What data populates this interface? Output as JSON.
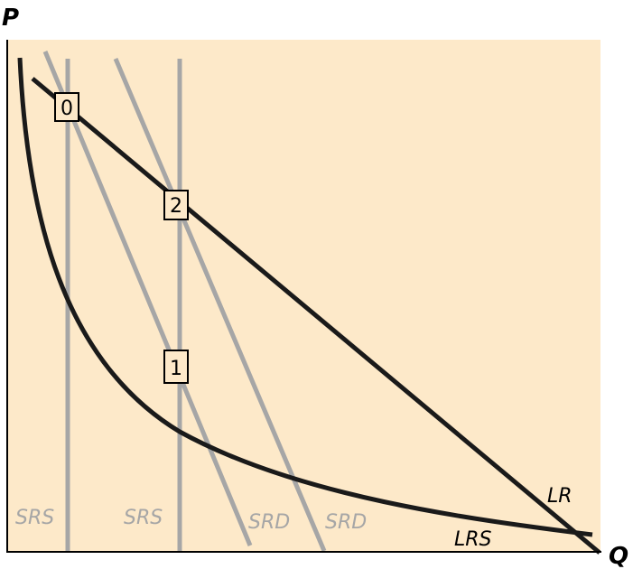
{
  "axes": {
    "y_label": "P",
    "x_label": "Q"
  },
  "curve_labels": {
    "srs_left": "SRS",
    "srs_right": "SRS",
    "srd_left": "SRD",
    "srd_right": "SRD",
    "lr": "LR",
    "lrs": "LRS"
  },
  "points": [
    "0",
    "2",
    "1"
  ],
  "colors": {
    "background": "#fde9c9",
    "black_curves": "#1a1a1a",
    "gray_curves": "#a6a6a6",
    "axis": "#000000"
  }
}
